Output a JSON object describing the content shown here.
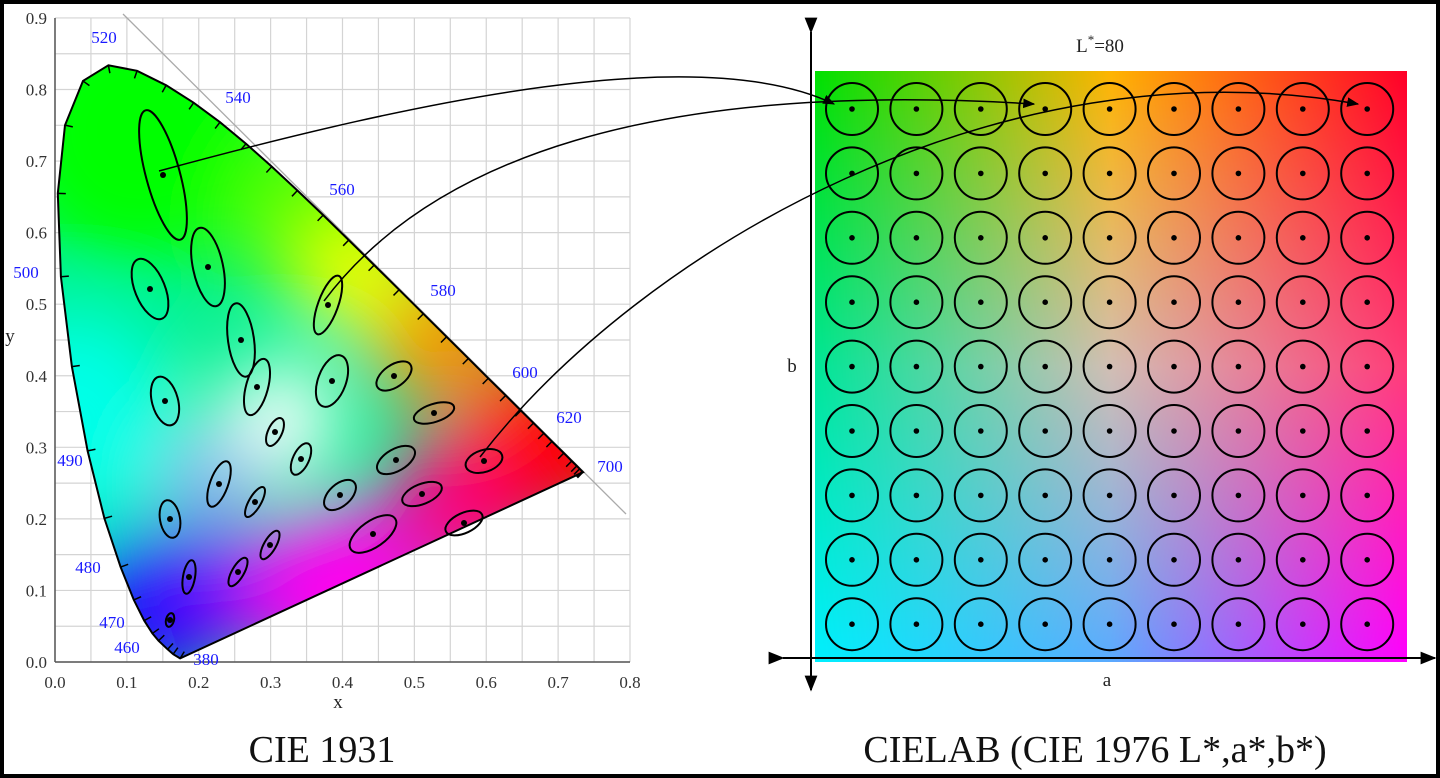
{
  "left": {
    "title": "CIE 1931",
    "x_axis_label": "x",
    "y_axis_label": "y",
    "x_ticks": [
      "0.0",
      "0.1",
      "0.2",
      "0.3",
      "0.4",
      "0.5",
      "0.6",
      "0.7",
      "0.8"
    ],
    "y_ticks": [
      "0.0",
      "0.1",
      "0.2",
      "0.3",
      "0.4",
      "0.5",
      "0.6",
      "0.7",
      "0.8",
      "0.9"
    ],
    "wavelength_labels": [
      "520",
      "540",
      "560",
      "580",
      "600",
      "620",
      "700",
      "500",
      "490",
      "480",
      "470",
      "460",
      "380"
    ],
    "label_color": "#1a1aff"
  },
  "right": {
    "title": "CIELAB (CIE 1976 L*,a*,b*)",
    "lightness_label": "L",
    "lightness_sup": "*",
    "lightness_value": "=80",
    "a_axis_label": "a",
    "b_axis_label": "b",
    "grid_rows": 9,
    "grid_cols": 9
  }
}
